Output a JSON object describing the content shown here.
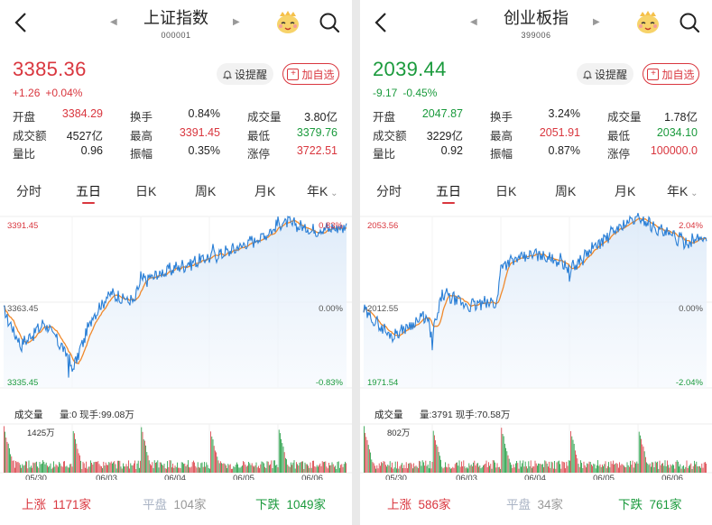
{
  "colors": {
    "red": "#d9363e",
    "green": "#1a9a3c",
    "orange": "#f0892c",
    "blue": "#2a7fd6"
  },
  "left": {
    "title": "上证指数",
    "code": "000001",
    "price": "3385.36",
    "change_abs": "+1.26",
    "change_pct": "+0.04%",
    "trend": "up",
    "remind_label": "设提醒",
    "addfav_label": "加自选",
    "stats": [
      [
        {
          "k": "开盘",
          "v": "3384.29",
          "c": "red"
        },
        {
          "k": "换手",
          "v": "0.84%",
          "c": "black"
        },
        {
          "k": "成交量",
          "v": "3.80亿",
          "c": "black"
        }
      ],
      [
        {
          "k": "成交额",
          "v": "4527亿",
          "c": "black"
        },
        {
          "k": "最高",
          "v": "3391.45",
          "c": "red"
        },
        {
          "k": "最低",
          "v": "3379.76",
          "c": "green"
        }
      ],
      [
        {
          "k": "量比",
          "v": "0.96",
          "c": "black"
        },
        {
          "k": "振幅",
          "v": "0.35%",
          "c": "black"
        },
        {
          "k": "涨停",
          "v": "3722.51",
          "c": "red"
        }
      ]
    ],
    "tabs": [
      "分时",
      "五日",
      "日K",
      "周K",
      "月K",
      "年K"
    ],
    "active_tab": 1,
    "chart": {
      "y_top": "3391.45",
      "y_mid": "3363.45",
      "y_bot": "3335.45",
      "pct_top": "0.83%",
      "pct_mid": "0.00%",
      "pct_bot": "-0.83%"
    },
    "vol_label": "成交量",
    "vol_info": "量:0 现手:99.08万",
    "vol_max": "1425万",
    "dates": [
      "05/30",
      "06/03",
      "06/04",
      "06/05",
      "06/06"
    ],
    "rise_label": "上涨",
    "rise_count": "1171家",
    "flat_label": "平盘",
    "flat_count": "104家",
    "fall_label": "下跌",
    "fall_count": "1049家"
  },
  "right": {
    "title": "创业板指",
    "code": "399006",
    "price": "2039.44",
    "change_abs": "-9.17",
    "change_pct": "-0.45%",
    "trend": "down",
    "remind_label": "设提醒",
    "addfav_label": "加自选",
    "stats": [
      [
        {
          "k": "开盘",
          "v": "2047.87",
          "c": "green"
        },
        {
          "k": "换手",
          "v": "3.24%",
          "c": "black"
        },
        {
          "k": "成交量",
          "v": "1.78亿",
          "c": "black"
        }
      ],
      [
        {
          "k": "成交额",
          "v": "3229亿",
          "c": "black"
        },
        {
          "k": "最高",
          "v": "2051.91",
          "c": "red"
        },
        {
          "k": "最低",
          "v": "2034.10",
          "c": "green"
        }
      ],
      [
        {
          "k": "量比",
          "v": "0.92",
          "c": "black"
        },
        {
          "k": "振幅",
          "v": "0.87%",
          "c": "black"
        },
        {
          "k": "涨停",
          "v": "100000.0",
          "c": "red"
        }
      ]
    ],
    "tabs": [
      "分时",
      "五日",
      "日K",
      "周K",
      "月K",
      "年K"
    ],
    "active_tab": 1,
    "chart": {
      "y_top": "2053.56",
      "y_mid": "2012.55",
      "y_bot": "1971.54",
      "pct_top": "2.04%",
      "pct_mid": "0.00%",
      "pct_bot": "-2.04%"
    },
    "vol_label": "成交量",
    "vol_info": "量:3791 现手:70.58万",
    "vol_max": "802万",
    "dates": [
      "05/30",
      "06/03",
      "06/04",
      "06/05",
      "06/06"
    ],
    "rise_label": "上涨",
    "rise_count": "586家",
    "flat_label": "平盘",
    "flat_count": "34家",
    "fall_label": "下跌",
    "fall_count": "761家"
  }
}
